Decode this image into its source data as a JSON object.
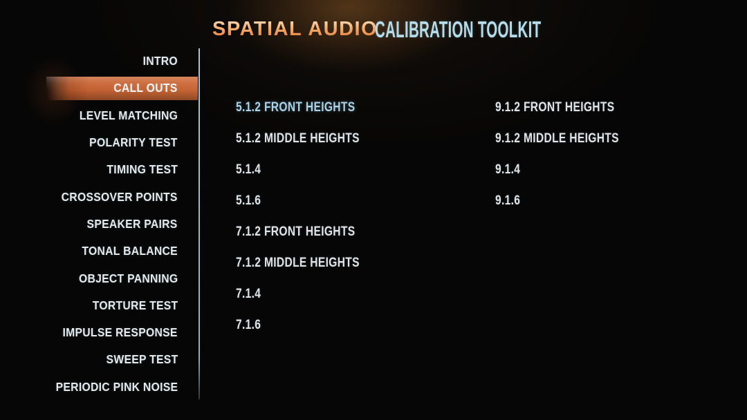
{
  "header": {
    "title_primary": "SPATIAL AUDIO",
    "title_secondary": "CALIBRATION TOOLKIT"
  },
  "sidebar": {
    "items": [
      {
        "label": "INTRO",
        "active": false
      },
      {
        "label": "CALL OUTS",
        "active": true
      },
      {
        "label": "LEVEL MATCHING",
        "active": false
      },
      {
        "label": "POLARITY TEST",
        "active": false
      },
      {
        "label": "TIMING TEST",
        "active": false
      },
      {
        "label": "CROSSOVER POINTS",
        "active": false
      },
      {
        "label": "SPEAKER PAIRS",
        "active": false
      },
      {
        "label": "TONAL BALANCE",
        "active": false
      },
      {
        "label": "OBJECT PANNING",
        "active": false
      },
      {
        "label": "TORTURE TEST",
        "active": false
      },
      {
        "label": "IMPULSE RESPONSE",
        "active": false
      },
      {
        "label": "SWEEP TEST",
        "active": false
      },
      {
        "label": "PERIODIC PINK NOISE",
        "active": false
      }
    ]
  },
  "content": {
    "columns": [
      {
        "name": "left",
        "items": [
          {
            "label": "5.1.2 FRONT HEIGHTS",
            "focused": true
          },
          {
            "label": "5.1.2 MIDDLE HEIGHTS",
            "focused": false
          },
          {
            "label": "5.1.4",
            "focused": false
          },
          {
            "label": "5.1.6",
            "focused": false
          },
          {
            "label": "7.1.2 FRONT HEIGHTS",
            "focused": false
          },
          {
            "label": "7.1.2 MIDDLE HEIGHTS",
            "focused": false
          },
          {
            "label": "7.1.4",
            "focused": false
          },
          {
            "label": "7.1.6",
            "focused": false
          }
        ]
      },
      {
        "name": "right",
        "items": [
          {
            "label": "9.1.2 FRONT HEIGHTS",
            "focused": false
          },
          {
            "label": "9.1.2 MIDDLE HEIGHTS",
            "focused": false
          },
          {
            "label": "9.1.4",
            "focused": false
          },
          {
            "label": "9.1.6",
            "focused": false
          }
        ]
      }
    ]
  },
  "colors": {
    "background": "#060606",
    "accent_orange": "#cd6836",
    "title_blue": "#b5dcea",
    "focused_item": "#a9d3e6",
    "item_text": "#dee4e7",
    "sidebar_text": "#e3eaee",
    "divider": "#accad4"
  }
}
